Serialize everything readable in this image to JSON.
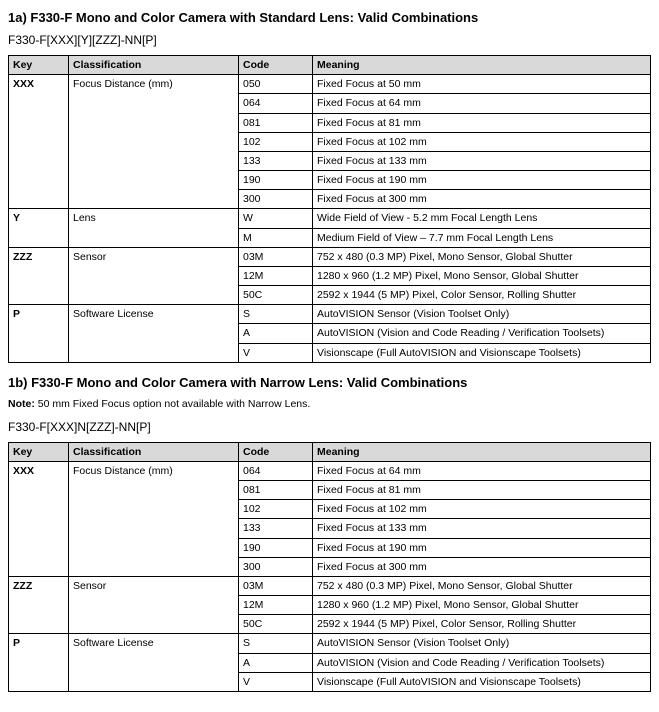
{
  "section1": {
    "title": "1a) F330-F Mono and Color Camera with Standard Lens: Valid Combinations",
    "pattern": "F330-F[XXX][Y][ZZZ]-NN[P]",
    "headers": {
      "key": "Key",
      "classification": "Classification",
      "code": "Code",
      "meaning": "Meaning"
    },
    "groups": [
      {
        "key": "XXX",
        "classification": "Focus Distance (mm)",
        "rows": [
          {
            "code": "050",
            "meaning": "Fixed Focus at 50 mm"
          },
          {
            "code": "064",
            "meaning": "Fixed Focus at 64 mm"
          },
          {
            "code": "081",
            "meaning": "Fixed Focus at 81 mm"
          },
          {
            "code": "102",
            "meaning": "Fixed Focus at 102 mm"
          },
          {
            "code": "133",
            "meaning": "Fixed Focus at 133 mm"
          },
          {
            "code": "190",
            "meaning": "Fixed Focus at 190 mm"
          },
          {
            "code": "300",
            "meaning": "Fixed Focus at 300 mm"
          }
        ]
      },
      {
        "key": "Y",
        "classification": "Lens",
        "rows": [
          {
            "code": "W",
            "meaning": "Wide Field of View - 5.2 mm Focal Length Lens"
          },
          {
            "code": "M",
            "meaning": "Medium Field of View – 7.7 mm Focal Length Lens"
          }
        ]
      },
      {
        "key": "ZZZ",
        "classification": "Sensor",
        "rows": [
          {
            "code": "03M",
            "meaning": "752 x 480 (0.3 MP) Pixel, Mono Sensor, Global Shutter"
          },
          {
            "code": "12M",
            "meaning": "1280 x 960 (1.2 MP) Pixel, Mono Sensor, Global Shutter"
          },
          {
            "code": "50C",
            "meaning": "2592 x 1944 (5 MP) Pixel, Color Sensor, Rolling Shutter"
          }
        ]
      },
      {
        "key": "P",
        "classification": "Software License",
        "rows": [
          {
            "code": "S",
            "meaning": "AutoVISION Sensor (Vision Toolset Only)"
          },
          {
            "code": "A",
            "meaning": "AutoVISION (Vision and Code Reading / Verification Toolsets)"
          },
          {
            "code": "V",
            "meaning": "Visionscape (Full AutoVISION and Visionscape Toolsets)"
          }
        ]
      }
    ]
  },
  "section2": {
    "title": "1b) F330-F Mono and Color Camera with Narrow Lens: Valid Combinations",
    "note_label": "Note:",
    "note_text": " 50 mm Fixed Focus option not available with Narrow Lens.",
    "pattern": "F330-F[XXX]N[ZZZ]-NN[P]",
    "headers": {
      "key": "Key",
      "classification": "Classification",
      "code": "Code",
      "meaning": "Meaning"
    },
    "groups": [
      {
        "key": "XXX",
        "classification": "Focus Distance (mm)",
        "rows": [
          {
            "code": "064",
            "meaning": "Fixed Focus at 64 mm"
          },
          {
            "code": "081",
            "meaning": "Fixed Focus at 81 mm"
          },
          {
            "code": "102",
            "meaning": "Fixed Focus at 102 mm"
          },
          {
            "code": "133",
            "meaning": "Fixed Focus at 133 mm"
          },
          {
            "code": "190",
            "meaning": "Fixed Focus at 190 mm"
          },
          {
            "code": "300",
            "meaning": "Fixed Focus at 300 mm"
          }
        ]
      },
      {
        "key": "ZZZ",
        "classification": "Sensor",
        "rows": [
          {
            "code": "03M",
            "meaning": "752 x 480 (0.3 MP) Pixel, Mono Sensor, Global Shutter"
          },
          {
            "code": "12M",
            "meaning": "1280 x 960 (1.2 MP) Pixel, Mono Sensor, Global Shutter"
          },
          {
            "code": "50C",
            "meaning": "2592 x 1944 (5 MP) Pixel, Color Sensor, Rolling Shutter"
          }
        ]
      },
      {
        "key": "P",
        "classification": "Software License",
        "rows": [
          {
            "code": "S",
            "meaning": "AutoVISION Sensor (Vision Toolset Only)"
          },
          {
            "code": "A",
            "meaning": "AutoVISION (Vision and Code Reading / Verification Toolsets)"
          },
          {
            "code": "V",
            "meaning": "Visionscape (Full AutoVISION and Visionscape Toolsets)"
          }
        ]
      }
    ]
  },
  "colors": {
    "header_bg": "#d9d9d9",
    "border": "#000000",
    "text": "#000000",
    "background": "#ffffff"
  }
}
